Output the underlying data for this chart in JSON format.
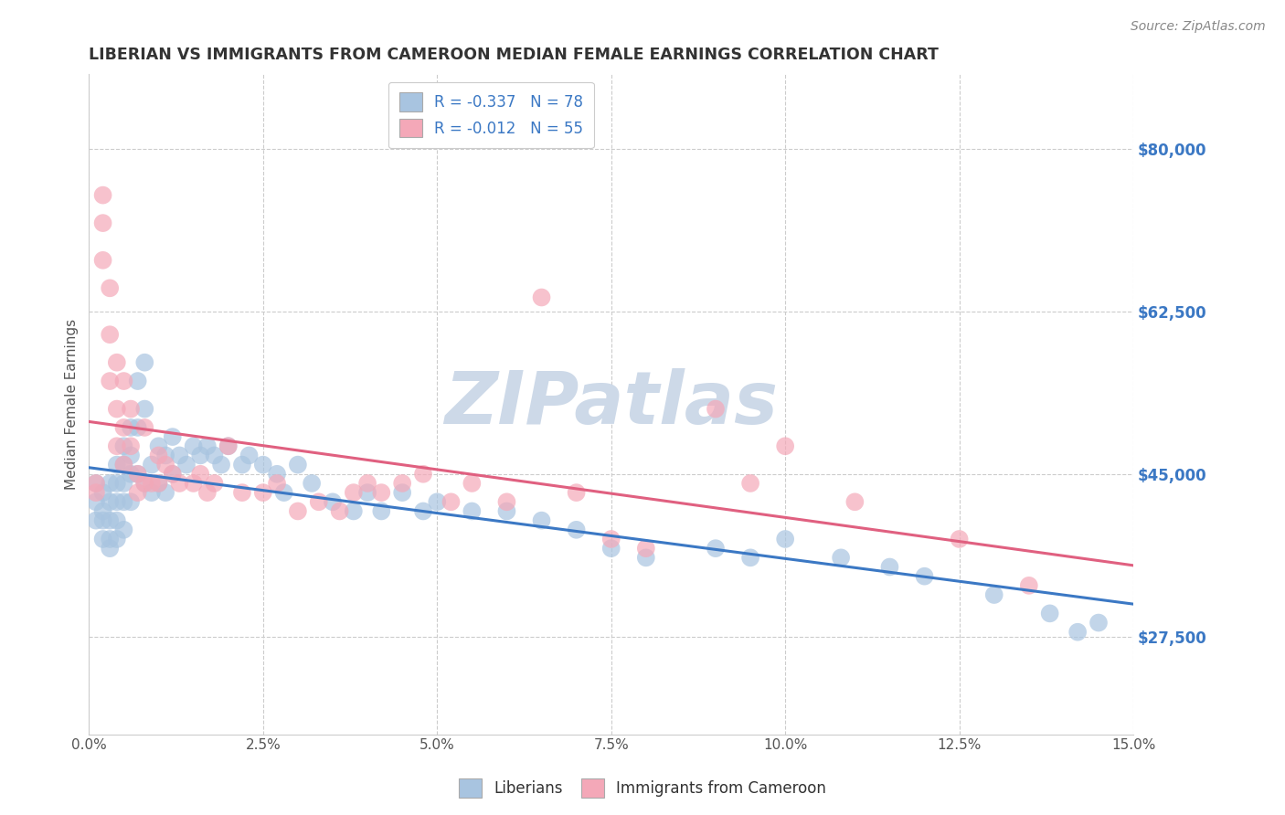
{
  "title": "LIBERIAN VS IMMIGRANTS FROM CAMEROON MEDIAN FEMALE EARNINGS CORRELATION CHART",
  "source": "Source: ZipAtlas.com",
  "ylabel": "Median Female Earnings",
  "xlabel_ticks": [
    "0.0%",
    "2.5%",
    "5.0%",
    "7.5%",
    "10.0%",
    "12.5%",
    "15.0%"
  ],
  "xlabel_vals": [
    0.0,
    0.025,
    0.05,
    0.075,
    0.1,
    0.125,
    0.15
  ],
  "ytick_labels": [
    "$27,500",
    "$45,000",
    "$62,500",
    "$80,000"
  ],
  "ytick_vals": [
    27500,
    45000,
    62500,
    80000
  ],
  "xlim": [
    0.0,
    0.15
  ],
  "ylim": [
    17000,
    88000
  ],
  "liberian_color": "#a8c4e0",
  "cameroon_color": "#f4a8b8",
  "watermark": "ZIPatlas",
  "watermark_color": "#cdd9e8",
  "trendline_liberian_color": "#3b78c4",
  "trendline_cameroon_color": "#e06080",
  "background_color": "#ffffff",
  "grid_color": "#cccccc",
  "title_color": "#333333",
  "axis_label_color": "#555555",
  "ytick_color": "#3b78c4",
  "legend_label_1": "R = -0.337   N = 78",
  "legend_label_2": "R = -0.012   N = 55",
  "liberian_x": [
    0.001,
    0.001,
    0.001,
    0.002,
    0.002,
    0.002,
    0.002,
    0.003,
    0.003,
    0.003,
    0.003,
    0.003,
    0.004,
    0.004,
    0.004,
    0.004,
    0.004,
    0.005,
    0.005,
    0.005,
    0.005,
    0.005,
    0.006,
    0.006,
    0.006,
    0.006,
    0.007,
    0.007,
    0.007,
    0.008,
    0.008,
    0.008,
    0.009,
    0.009,
    0.01,
    0.01,
    0.011,
    0.011,
    0.012,
    0.012,
    0.013,
    0.014,
    0.015,
    0.016,
    0.017,
    0.018,
    0.019,
    0.02,
    0.022,
    0.023,
    0.025,
    0.027,
    0.028,
    0.03,
    0.032,
    0.035,
    0.038,
    0.04,
    0.042,
    0.045,
    0.048,
    0.05,
    0.055,
    0.06,
    0.065,
    0.07,
    0.075,
    0.08,
    0.09,
    0.095,
    0.1,
    0.108,
    0.115,
    0.12,
    0.13,
    0.138,
    0.142,
    0.145
  ],
  "liberian_y": [
    44000,
    42000,
    40000,
    43000,
    41000,
    40000,
    38000,
    44000,
    42000,
    40000,
    38000,
    37000,
    46000,
    44000,
    42000,
    40000,
    38000,
    48000,
    46000,
    44000,
    42000,
    39000,
    50000,
    47000,
    45000,
    42000,
    55000,
    50000,
    45000,
    57000,
    52000,
    44000,
    46000,
    43000,
    48000,
    44000,
    47000,
    43000,
    49000,
    45000,
    47000,
    46000,
    48000,
    47000,
    48000,
    47000,
    46000,
    48000,
    46000,
    47000,
    46000,
    45000,
    43000,
    46000,
    44000,
    42000,
    41000,
    43000,
    41000,
    43000,
    41000,
    42000,
    41000,
    41000,
    40000,
    39000,
    37000,
    36000,
    37000,
    36000,
    38000,
    36000,
    35000,
    34000,
    32000,
    30000,
    28000,
    29000
  ],
  "cameroon_x": [
    0.001,
    0.001,
    0.002,
    0.002,
    0.002,
    0.003,
    0.003,
    0.003,
    0.004,
    0.004,
    0.004,
    0.005,
    0.005,
    0.005,
    0.006,
    0.006,
    0.007,
    0.007,
    0.008,
    0.008,
    0.009,
    0.01,
    0.01,
    0.011,
    0.012,
    0.013,
    0.015,
    0.016,
    0.017,
    0.018,
    0.02,
    0.022,
    0.025,
    0.027,
    0.03,
    0.033,
    0.036,
    0.038,
    0.04,
    0.042,
    0.045,
    0.048,
    0.052,
    0.055,
    0.06,
    0.065,
    0.07,
    0.075,
    0.08,
    0.09,
    0.095,
    0.1,
    0.11,
    0.125,
    0.135
  ],
  "cameroon_y": [
    44000,
    43000,
    75000,
    72000,
    68000,
    65000,
    60000,
    55000,
    57000,
    52000,
    48000,
    55000,
    50000,
    46000,
    52000,
    48000,
    45000,
    43000,
    50000,
    44000,
    44000,
    47000,
    44000,
    46000,
    45000,
    44000,
    44000,
    45000,
    43000,
    44000,
    48000,
    43000,
    43000,
    44000,
    41000,
    42000,
    41000,
    43000,
    44000,
    43000,
    44000,
    45000,
    42000,
    44000,
    42000,
    64000,
    43000,
    38000,
    37000,
    52000,
    44000,
    48000,
    42000,
    38000,
    33000
  ]
}
